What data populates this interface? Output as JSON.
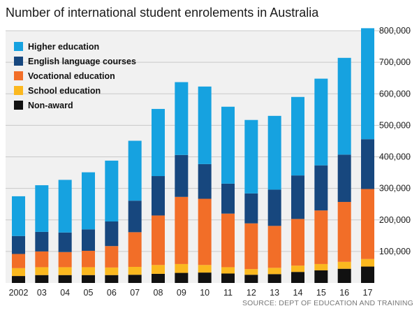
{
  "chart_data": {
    "type": "bar",
    "stacked": true,
    "title": "Number of international student enrolements in Australia",
    "source": "SOURCE: DEPT OF EDUCATION AND TRAINING",
    "categories": [
      "2002",
      "03",
      "04",
      "05",
      "06",
      "07",
      "08",
      "09",
      "10",
      "11",
      "12",
      "13",
      "14",
      "15",
      "16",
      "17"
    ],
    "ylim": [
      0,
      800000
    ],
    "yticks": [
      100000,
      200000,
      300000,
      400000,
      500000,
      600000,
      700000,
      800000
    ],
    "ytick_labels": [
      "100,000",
      "200,000",
      "300,000",
      "400,000",
      "500,000",
      "600,000",
      "700,000",
      "800,000"
    ],
    "grid": true,
    "legend_position": "top-left",
    "series": [
      {
        "name": "Non-award",
        "color": "#111111",
        "values": [
          22000,
          25000,
          25000,
          25000,
          25000,
          26000,
          29000,
          32000,
          33000,
          30000,
          26000,
          28000,
          35000,
          40000,
          45000,
          52000
        ]
      },
      {
        "name": "School education",
        "color": "#fbb81f",
        "values": [
          25000,
          25000,
          25000,
          25000,
          24000,
          25000,
          28000,
          28000,
          24000,
          20000,
          18000,
          20000,
          20000,
          20000,
          22000,
          24000
        ]
      },
      {
        "name": "Vocational education",
        "color": "#f26e28",
        "values": [
          45000,
          50000,
          48000,
          52000,
          68000,
          110000,
          157000,
          213000,
          210000,
          170000,
          145000,
          133000,
          148000,
          170000,
          190000,
          222000
        ]
      },
      {
        "name": "English language courses",
        "color": "#17477e",
        "values": [
          57000,
          62000,
          62000,
          68000,
          78000,
          100000,
          125000,
          133000,
          110000,
          95000,
          95000,
          115000,
          138000,
          143000,
          150000,
          158000
        ]
      },
      {
        "name": "Higher education",
        "color": "#16a2e0",
        "values": [
          126000,
          148000,
          167000,
          181000,
          193000,
          190000,
          213000,
          231000,
          246000,
          244000,
          233000,
          234000,
          249000,
          275000,
          307000,
          352000
        ]
      }
    ]
  }
}
